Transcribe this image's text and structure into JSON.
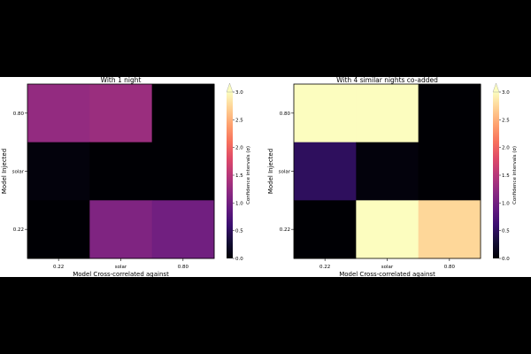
{
  "chart_data": [
    {
      "type": "heatmap",
      "title": "With 1 night",
      "xlabel": "Model Cross-correlated against",
      "ylabel": "Model Injected",
      "x_categories": [
        "0.22",
        "solar",
        "0.80"
      ],
      "y_categories": [
        "0.80",
        "solar",
        "0.22"
      ],
      "values": [
        [
          1.25,
          1.3,
          0.0
        ],
        [
          0.05,
          0.0,
          0.0
        ],
        [
          0.0,
          1.1,
          1.0
        ]
      ],
      "colormap": "magma",
      "colorbar": {
        "label": "Confidence intervals (σ)",
        "range": [
          0,
          3
        ],
        "ticks": [
          "0.0",
          "0.5",
          "1.0",
          "1.5",
          "2.0",
          "2.5",
          "3.0"
        ],
        "extend": "max"
      }
    },
    {
      "type": "heatmap",
      "title": "With 4 similar nights co-added",
      "xlabel": "Model Cross-correlated against",
      "ylabel": "Model Injected",
      "x_categories": [
        "0.22",
        "solar",
        "0.80"
      ],
      "y_categories": [
        "0.80",
        "solar",
        "0.22"
      ],
      "values": [
        [
          3.0,
          3.0,
          0.0
        ],
        [
          0.5,
          0.05,
          0.0
        ],
        [
          0.0,
          3.0,
          2.75
        ]
      ],
      "colormap": "magma",
      "colorbar": {
        "label": "Confidence intervals (σ)",
        "range": [
          0,
          3
        ],
        "ticks": [
          "0.0",
          "0.5",
          "1.0",
          "1.5",
          "2.0",
          "2.5",
          "3.0"
        ],
        "extend": "max"
      }
    }
  ]
}
